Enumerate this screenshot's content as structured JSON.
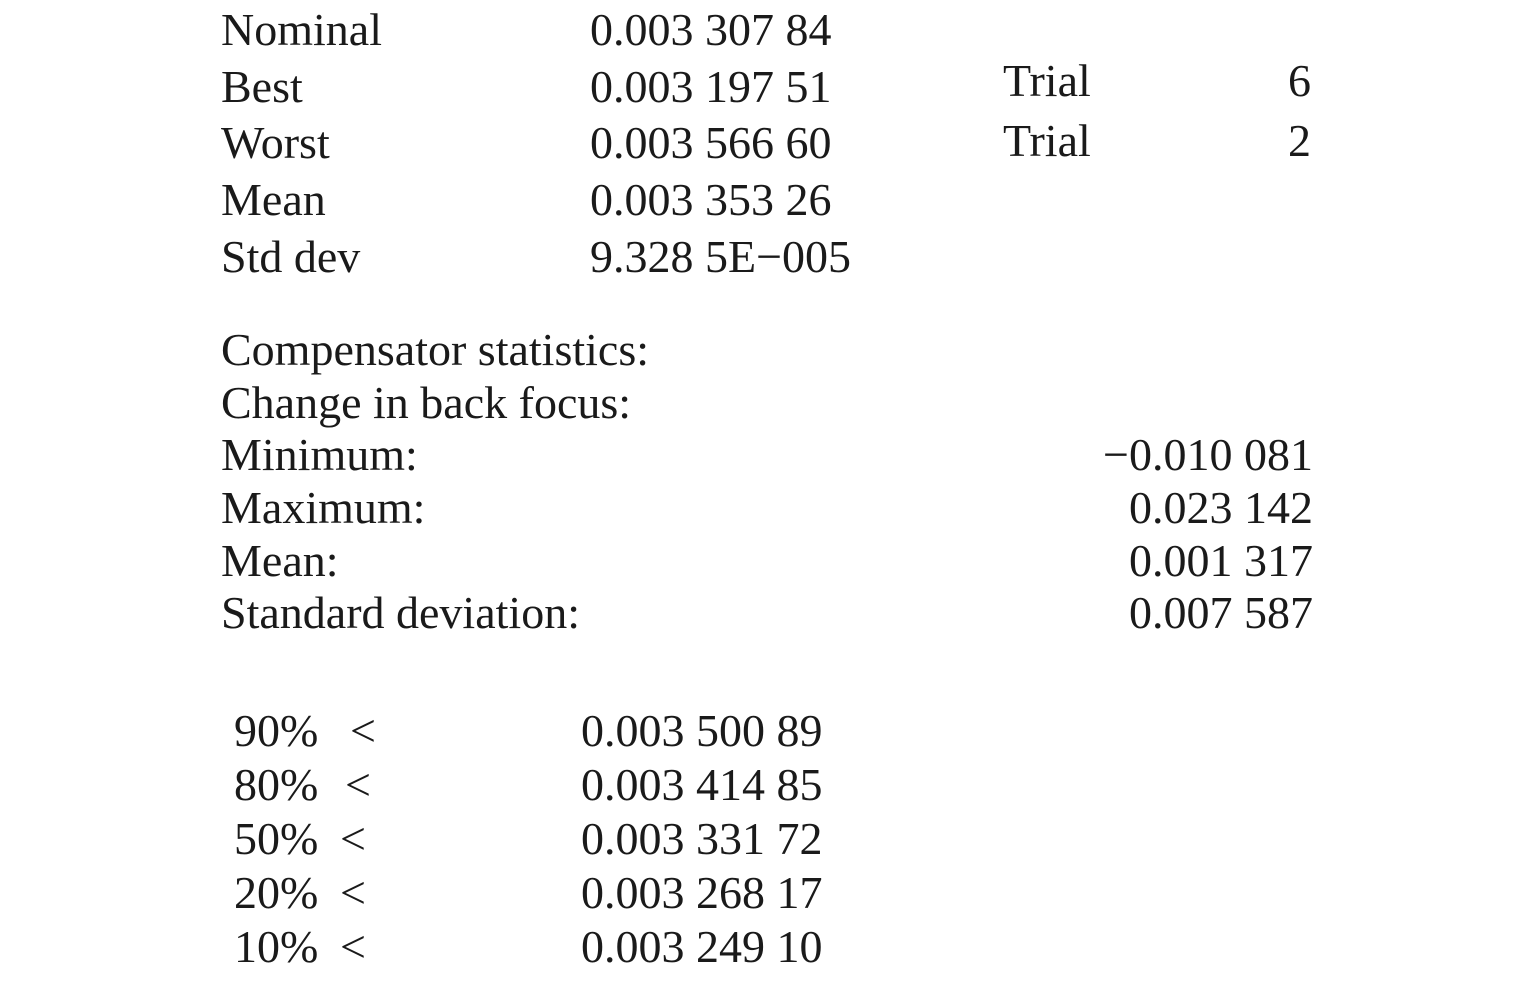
{
  "stats": [
    {
      "label": "Nominal",
      "value": "0.003 307 84",
      "trial_label": "",
      "trial_number": ""
    },
    {
      "label": "Best",
      "value": "0.003 197 51",
      "trial_label": "Trial",
      "trial_number": "6"
    },
    {
      "label": "Worst",
      "value": "0.003 566 60",
      "trial_label": "Trial",
      "trial_number": "2"
    },
    {
      "label": "Mean",
      "value": "0.003 353 26",
      "trial_label": "",
      "trial_number": ""
    },
    {
      "label": "Std dev",
      "value": "9.328 5E−005",
      "trial_label": "",
      "trial_number": ""
    }
  ],
  "compensator": {
    "heading": "Compensator statistics:",
    "subheading": "Change in back focus:",
    "rows": [
      {
        "label": "Minimum:",
        "value": "−0.010 081"
      },
      {
        "label": "Maximum:",
        "value": "0.023 142"
      },
      {
        "label": "Mean:",
        "value": "0.001 317"
      },
      {
        "label": "Standard deviation:",
        "value": "0.007 587"
      }
    ]
  },
  "percentiles": [
    {
      "percent": "90%",
      "symbol": "<",
      "value": "0.003 500 89"
    },
    {
      "percent": "80%",
      "symbol": "<",
      "value": "0.003 414 85"
    },
    {
      "percent": "50%",
      "symbol": "<",
      "value": "0.003 331 72"
    },
    {
      "percent": "20%",
      "symbol": "<",
      "value": "0.003 268 17"
    },
    {
      "percent": "10%",
      "symbol": "<",
      "value": "0.003 249 10"
    }
  ]
}
